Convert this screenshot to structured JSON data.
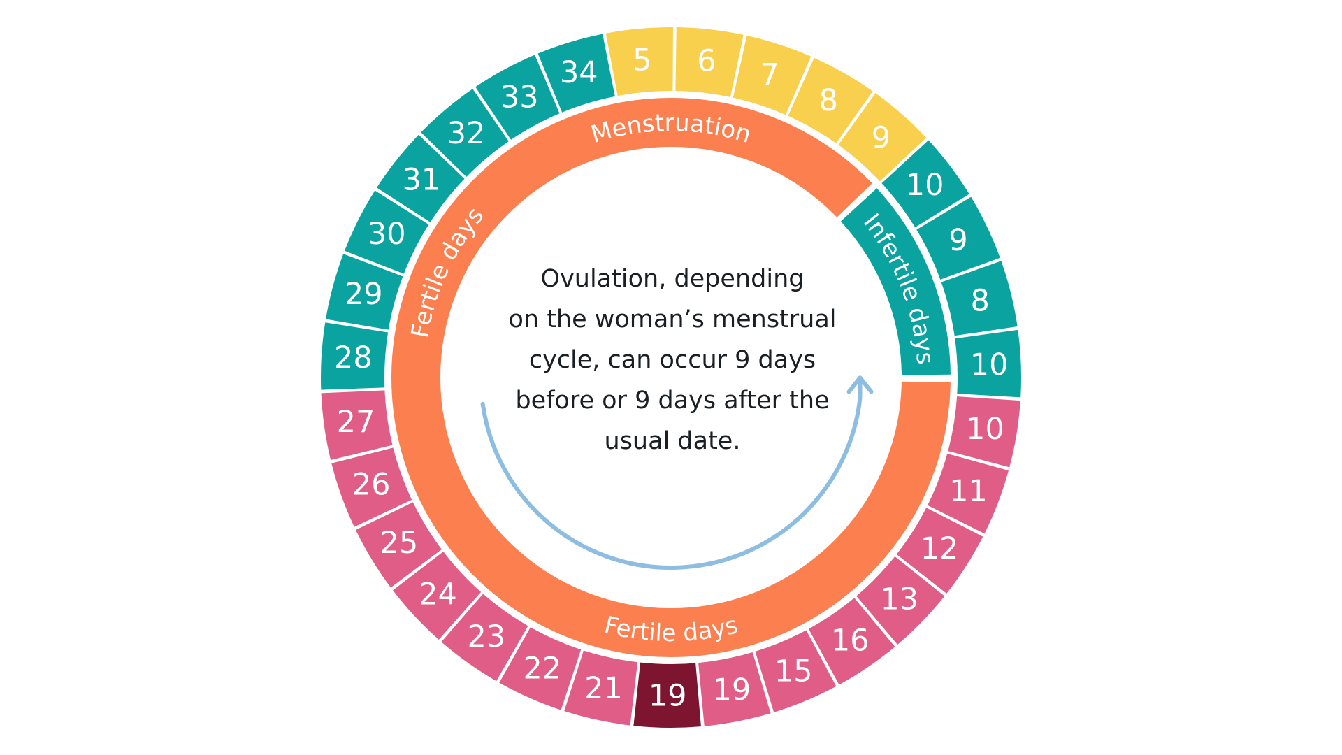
{
  "colors": {
    "teal": "#0AA39F",
    "yellow": "#F9CF4E",
    "pink": "#DF5D87",
    "highlight": "#7D1530",
    "orange": "#FB7F4F",
    "arrow": "#8DBDE0",
    "text": "#1A1F24"
  },
  "days": [
    {
      "label": "5",
      "color": "yellow"
    },
    {
      "label": "6",
      "color": "yellow"
    },
    {
      "label": "7",
      "color": "yellow"
    },
    {
      "label": "8",
      "color": "yellow"
    },
    {
      "label": "9",
      "color": "yellow"
    },
    {
      "label": "10",
      "color": "teal"
    },
    {
      "label": "9",
      "color": "teal"
    },
    {
      "label": "8",
      "color": "teal"
    },
    {
      "label": "10",
      "color": "teal"
    },
    {
      "label": "10",
      "color": "pink"
    },
    {
      "label": "11",
      "color": "pink"
    },
    {
      "label": "12",
      "color": "pink"
    },
    {
      "label": "13",
      "color": "pink"
    },
    {
      "label": "16",
      "color": "pink"
    },
    {
      "label": "15",
      "color": "pink"
    },
    {
      "label": "19",
      "color": "pink"
    },
    {
      "label": "19",
      "color": "highlight"
    },
    {
      "label": "21",
      "color": "pink"
    },
    {
      "label": "22",
      "color": "pink"
    },
    {
      "label": "23",
      "color": "pink"
    },
    {
      "label": "24",
      "color": "pink"
    },
    {
      "label": "25",
      "color": "pink"
    },
    {
      "label": "26",
      "color": "pink"
    },
    {
      "label": "27",
      "color": "pink"
    },
    {
      "label": "28",
      "color": "teal"
    },
    {
      "label": "29",
      "color": "teal"
    },
    {
      "label": "30",
      "color": "teal"
    },
    {
      "label": "31",
      "color": "teal"
    },
    {
      "label": "32",
      "color": "teal"
    },
    {
      "label": "33",
      "color": "teal"
    },
    {
      "label": "34",
      "color": "teal"
    }
  ],
  "phases": [
    {
      "label": "Menstruation",
      "color": "orange"
    },
    {
      "label": "Infertile days",
      "color": "teal"
    },
    {
      "label": "Fertile days",
      "color": "orange"
    },
    {
      "label": "Fertile days",
      "color": "orange"
    }
  ],
  "center_text": {
    "lines": [
      "Ovulation, depending",
      "on the woman’s menstrual",
      "cycle, can occur 9 days",
      "before or 9 days after the",
      "usual date."
    ]
  }
}
